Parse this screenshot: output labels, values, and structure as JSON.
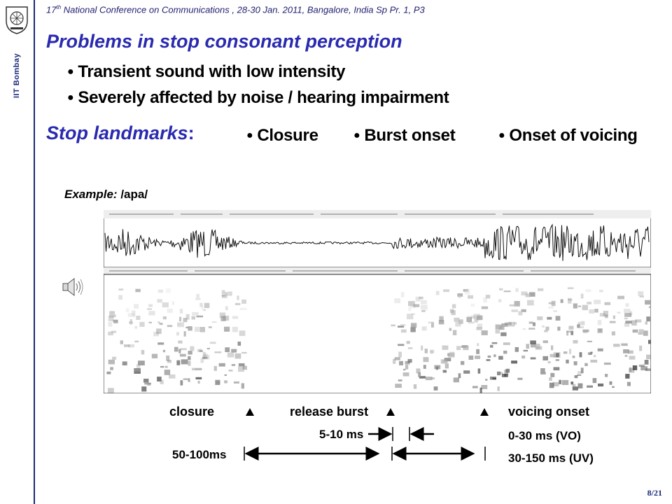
{
  "sidebar": {
    "institution": "IIT Bombay"
  },
  "header": {
    "pre": "17",
    "sup": "th",
    "post": " National Conference on Communications , 28-30 Jan. 2011, Bangalore, India Sp Pr. 1, P3"
  },
  "title": "Problems in stop consonant perception",
  "bullets": [
    "Transient sound with low intensity",
    "Severely affected by noise / hearing impairment"
  ],
  "landmarks": {
    "label": "Stop landmarks",
    "colon": ":",
    "items": [
      "Closure",
      "Burst onset",
      "Onset of voicing"
    ]
  },
  "example": {
    "label": "Example:",
    "value": " /apa/"
  },
  "figure": {
    "annotations": {
      "closure": "closure",
      "release_burst": "release burst",
      "voicing_onset": "voicing onset",
      "burst_duration": "5-10 ms",
      "closure_duration": "50-100ms",
      "vo": "0-30 ms (VO)",
      "uv": "30-150 ms (UV)"
    },
    "icons": [
      "speaker-icon",
      "up-arrow-marker"
    ]
  },
  "page": "8/21",
  "colors": {
    "title": "#2a2ab0",
    "sidebar": "#1a2a7a"
  }
}
